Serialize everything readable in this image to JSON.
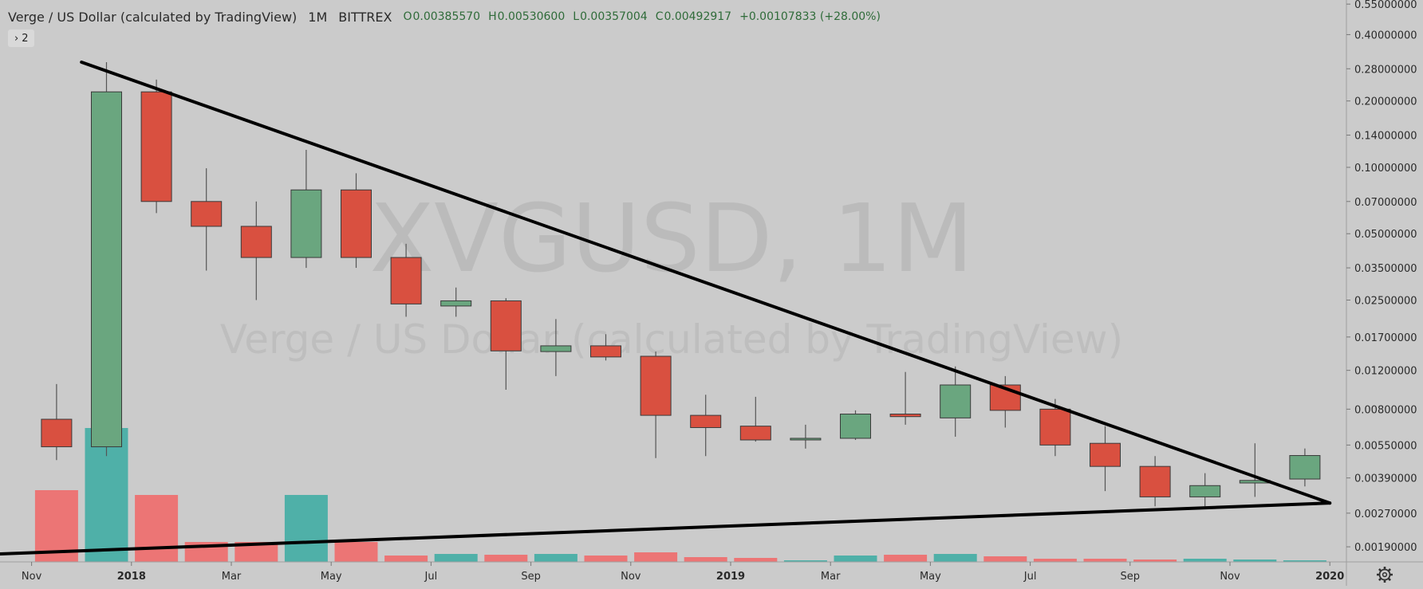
{
  "header": {
    "title": "Verge / US Dollar (calculated by TradingView)",
    "interval": "1M",
    "exchange": "BITTREX",
    "open_label": "O",
    "open": "0.00385570",
    "high_label": "H",
    "high": "0.00530600",
    "low_label": "L",
    "low": "0.00357004",
    "close_label": "C",
    "close": "0.00492917",
    "change": "+0.00107833 (+28.00%)"
  },
  "indicator_toggle": {
    "chevron": "›",
    "count": "2"
  },
  "watermark": {
    "symbol": "XVGUSD, 1M",
    "description": "Verge / US Dollar (calculated by TradingView)"
  },
  "colors": {
    "background": "#cbcbcb",
    "up_candle": "#6aa67f",
    "down_candle": "#d95040",
    "candle_border": "#3a3a3a",
    "volume_up": "#4fb0a8",
    "volume_down": "#ec7575",
    "trendline": "#000000",
    "axis_text": "#2a2a2a"
  },
  "settings_icon": "gear-icon",
  "chart_data": {
    "type": "candlestick",
    "y_scale": "log",
    "ylim": [
      0.00165,
      0.56
    ],
    "x_ticks": [
      {
        "label": "Nov",
        "month": "2017-11",
        "bold": false
      },
      {
        "label": "2018",
        "month": "2018-01",
        "bold": true
      },
      {
        "label": "Mar",
        "month": "2018-03",
        "bold": false
      },
      {
        "label": "May",
        "month": "2018-05",
        "bold": false
      },
      {
        "label": "Jul",
        "month": "2018-07",
        "bold": false
      },
      {
        "label": "Sep",
        "month": "2018-09",
        "bold": false
      },
      {
        "label": "Nov",
        "month": "2018-11",
        "bold": false
      },
      {
        "label": "2019",
        "month": "2019-01",
        "bold": true
      },
      {
        "label": "Mar",
        "month": "2019-03",
        "bold": false
      },
      {
        "label": "May",
        "month": "2019-05",
        "bold": false
      },
      {
        "label": "Jul",
        "month": "2019-07",
        "bold": false
      },
      {
        "label": "Sep",
        "month": "2019-09",
        "bold": false
      },
      {
        "label": "Nov",
        "month": "2019-11",
        "bold": false
      },
      {
        "label": "2020",
        "month": "2020-01",
        "bold": true
      }
    ],
    "y_ticks": [
      {
        "label": "0.55000000",
        "value": 0.55
      },
      {
        "label": "0.40000000",
        "value": 0.4
      },
      {
        "label": "0.28000000",
        "value": 0.28
      },
      {
        "label": "0.20000000",
        "value": 0.2
      },
      {
        "label": "0.14000000",
        "value": 0.14
      },
      {
        "label": "0.10000000",
        "value": 0.1
      },
      {
        "label": "0.07000000",
        "value": 0.07
      },
      {
        "label": "0.05000000",
        "value": 0.05
      },
      {
        "label": "0.03500000",
        "value": 0.035
      },
      {
        "label": "0.02500000",
        "value": 0.025
      },
      {
        "label": "0.01700000",
        "value": 0.017
      },
      {
        "label": "0.01200000",
        "value": 0.012
      },
      {
        "label": "0.00800000",
        "value": 0.008
      },
      {
        "label": "0.00550000",
        "value": 0.0055
      },
      {
        "label": "0.00390000",
        "value": 0.0039
      },
      {
        "label": "0.00270000",
        "value": 0.0027
      },
      {
        "label": "0.00190000",
        "value": 0.0019
      }
    ],
    "candles": [
      {
        "month": "2017-11",
        "open": 0.0072,
        "high": 0.0104,
        "low": 0.0047,
        "close": 0.0054
      },
      {
        "month": "2017-12",
        "open": 0.0054,
        "high": 0.3,
        "low": 0.0049,
        "close": 0.22
      },
      {
        "month": "2018-01",
        "open": 0.22,
        "high": 0.25,
        "low": 0.062,
        "close": 0.07
      },
      {
        "month": "2018-02",
        "open": 0.07,
        "high": 0.099,
        "low": 0.034,
        "close": 0.054
      },
      {
        "month": "2018-03",
        "open": 0.054,
        "high": 0.07,
        "low": 0.025,
        "close": 0.039
      },
      {
        "month": "2018-04",
        "open": 0.039,
        "high": 0.12,
        "low": 0.035,
        "close": 0.079
      },
      {
        "month": "2018-05",
        "open": 0.079,
        "high": 0.094,
        "low": 0.035,
        "close": 0.039
      },
      {
        "month": "2018-06",
        "open": 0.039,
        "high": 0.045,
        "low": 0.021,
        "close": 0.024
      },
      {
        "month": "2018-07",
        "open": 0.0235,
        "high": 0.0285,
        "low": 0.021,
        "close": 0.0248
      },
      {
        "month": "2018-08",
        "open": 0.0248,
        "high": 0.0255,
        "low": 0.0098,
        "close": 0.0147
      },
      {
        "month": "2018-09",
        "open": 0.0146,
        "high": 0.0205,
        "low": 0.0113,
        "close": 0.0155
      },
      {
        "month": "2018-10",
        "open": 0.0155,
        "high": 0.0175,
        "low": 0.0133,
        "close": 0.0138
      },
      {
        "month": "2018-11",
        "open": 0.0139,
        "high": 0.0146,
        "low": 0.0048,
        "close": 0.0075
      },
      {
        "month": "2018-12",
        "open": 0.0075,
        "high": 0.0093,
        "low": 0.0049,
        "close": 0.0066
      },
      {
        "month": "2019-01",
        "open": 0.0067,
        "high": 0.0091,
        "low": 0.0057,
        "close": 0.0058
      },
      {
        "month": "2019-02",
        "open": 0.0058,
        "high": 0.0068,
        "low": 0.0053,
        "close": 0.0059
      },
      {
        "month": "2019-03",
        "open": 0.0059,
        "high": 0.0079,
        "low": 0.0058,
        "close": 0.0076
      },
      {
        "month": "2019-04",
        "open": 0.0076,
        "high": 0.0118,
        "low": 0.0068,
        "close": 0.0074
      },
      {
        "month": "2019-05",
        "open": 0.0073,
        "high": 0.0125,
        "low": 0.006,
        "close": 0.0103
      },
      {
        "month": "2019-06",
        "open": 0.0103,
        "high": 0.0113,
        "low": 0.0066,
        "close": 0.0079
      },
      {
        "month": "2019-07",
        "open": 0.008,
        "high": 0.0089,
        "low": 0.0049,
        "close": 0.0055
      },
      {
        "month": "2019-08",
        "open": 0.0056,
        "high": 0.0067,
        "low": 0.0034,
        "close": 0.0044
      },
      {
        "month": "2019-09",
        "open": 0.0044,
        "high": 0.0049,
        "low": 0.0029,
        "close": 0.0032
      },
      {
        "month": "2019-10",
        "open": 0.0032,
        "high": 0.0041,
        "low": 0.0029,
        "close": 0.0036
      },
      {
        "month": "2019-11",
        "open": 0.0037,
        "high": 0.0056,
        "low": 0.0032,
        "close": 0.0038
      },
      {
        "month": "2019-12",
        "open": 0.0038557,
        "high": 0.005306,
        "low": 0.00357004,
        "close": 0.00492917
      }
    ],
    "volume_relative": [
      0.9,
      1.68,
      0.84,
      0.25,
      0.25,
      0.84,
      0.25,
      0.08,
      0.1,
      0.09,
      0.1,
      0.08,
      0.12,
      0.06,
      0.05,
      0.02,
      0.08,
      0.09,
      0.1,
      0.07,
      0.04,
      0.04,
      0.03,
      0.04,
      0.03,
      0.02
    ],
    "volume_up": [
      false,
      true,
      false,
      false,
      false,
      true,
      false,
      false,
      true,
      false,
      true,
      false,
      false,
      false,
      false,
      true,
      true,
      false,
      true,
      false,
      false,
      false,
      false,
      true,
      true,
      true
    ],
    "trendlines": [
      {
        "name": "upper",
        "from": {
          "month": "2017-12",
          "price": 0.3
        },
        "to": {
          "month": "2020-01",
          "price": 0.003
        }
      },
      {
        "name": "lower",
        "from": {
          "month": "2017-10",
          "price": 0.00175
        },
        "to": {
          "month": "2020-01",
          "price": 0.003
        }
      }
    ]
  }
}
